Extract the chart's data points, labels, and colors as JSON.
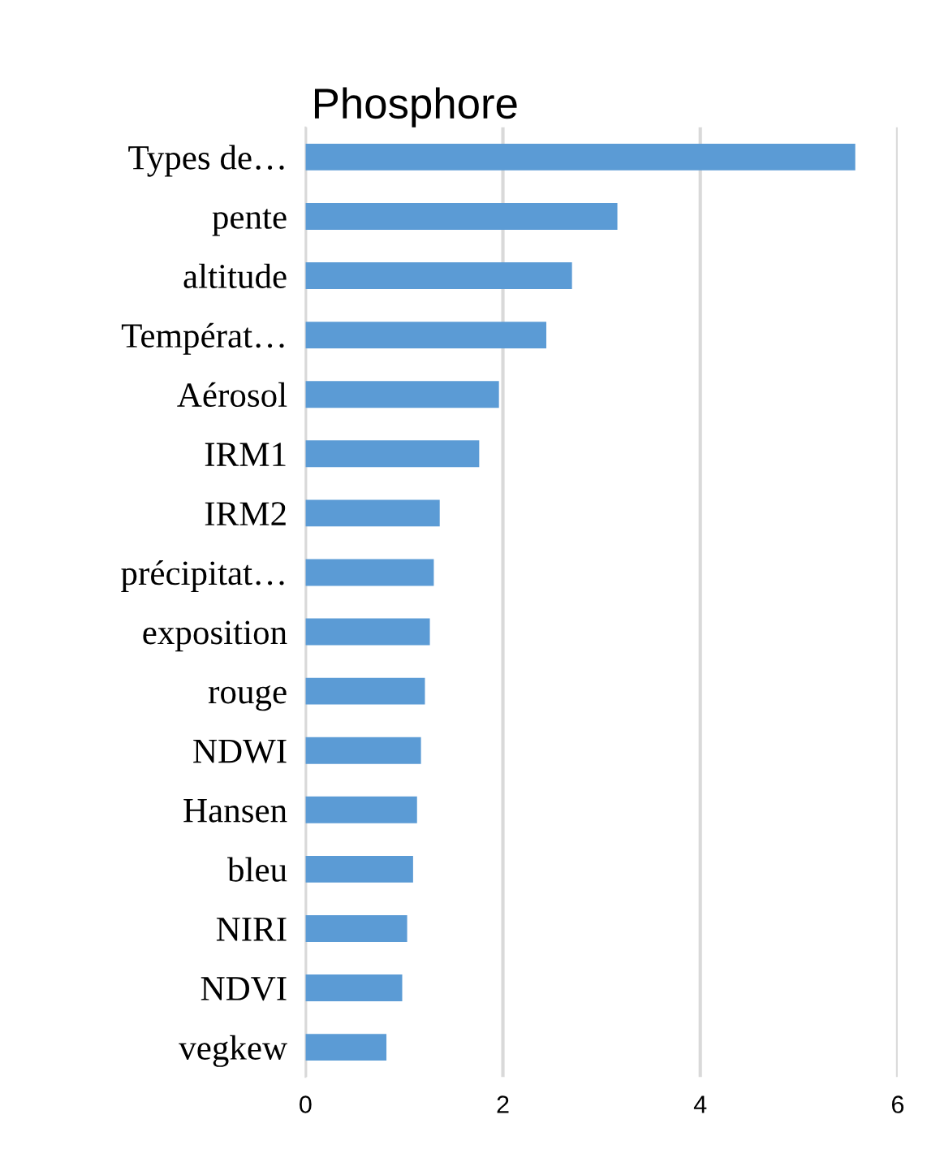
{
  "chart_data": {
    "type": "bar",
    "orientation": "horizontal",
    "title": "Phosphore",
    "categories": [
      "Types de…",
      "pente",
      "altitude",
      "Températ…",
      "Aérosol",
      "IRM1",
      "IRM2",
      "précipitat…",
      "exposition",
      "rouge",
      "NDWI",
      "Hansen",
      "bleu",
      "NIRI",
      "NDVI",
      "vegkew"
    ],
    "values": [
      5.57,
      3.16,
      2.7,
      2.44,
      1.96,
      1.76,
      1.36,
      1.3,
      1.26,
      1.21,
      1.17,
      1.13,
      1.09,
      1.03,
      0.98,
      0.82
    ],
    "color": "#5b9bd5",
    "xlim": [
      0,
      6
    ],
    "xticks": [
      0,
      2,
      4,
      6
    ],
    "grid": "x"
  }
}
